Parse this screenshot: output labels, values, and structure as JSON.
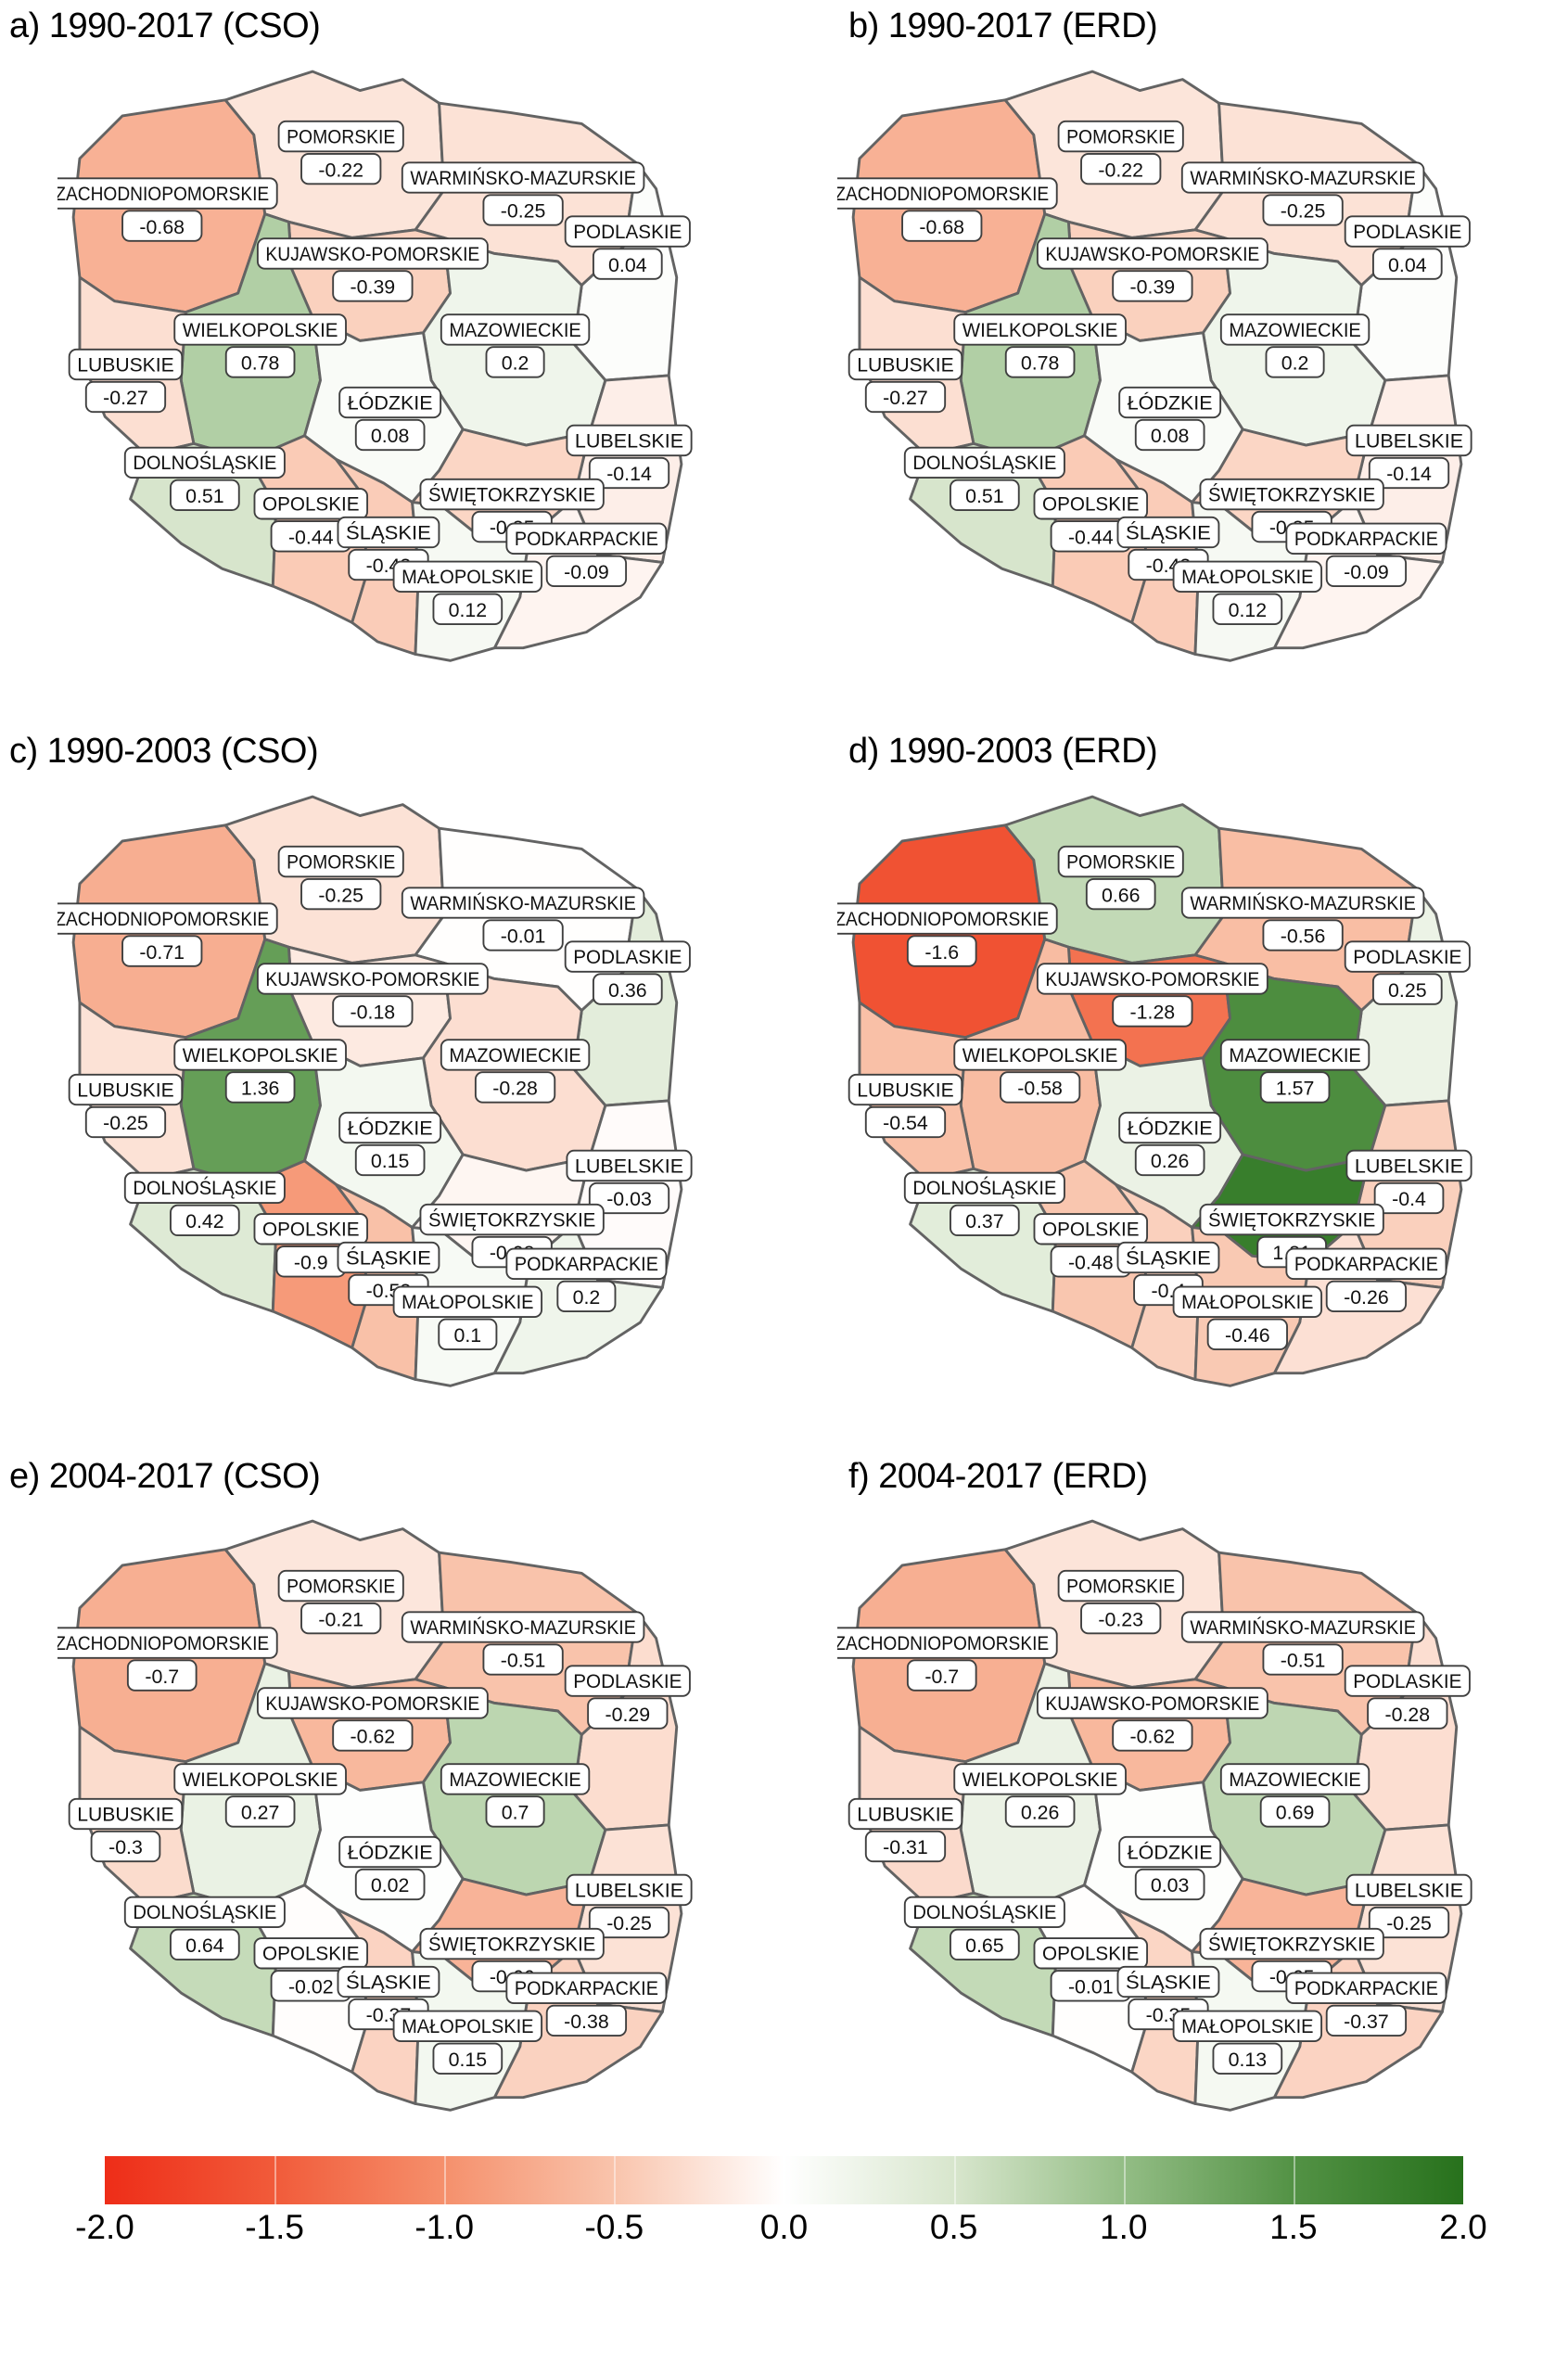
{
  "chart_data": {
    "type": "choropleth",
    "panels": [
      {
        "id": "a",
        "title": "a) 1990-2017 (CSO)",
        "values": {
          "ZACHODNIOPOMORSKIE": -0.68,
          "POMORSKIE": -0.22,
          "WARMIŃSKO-MAZURSKIE": -0.25,
          "PODLASKIE": 0.04,
          "KUJAWSKO-POMORSKIE": -0.39,
          "WIELKOPOLSKIE": 0.78,
          "MAZOWIECKIE": 0.2,
          "LUBUSKIE": -0.27,
          "ŁÓDZKIE": 0.08,
          "LUBELSKIE": -0.14,
          "DOLNOŚLĄSKIE": 0.51,
          "OPOLSKIE": -0.44,
          "ŚWIĘTOKRZYSKIE": -0.35,
          "ŚLĄSKIE": -0.43,
          "PODKARPACKIE": -0.09,
          "MAŁOPOLSKIE": 0.12
        }
      },
      {
        "id": "b",
        "title": "b) 1990-2017 (ERD)",
        "values": {
          "ZACHODNIOPOMORSKIE": -0.68,
          "POMORSKIE": -0.22,
          "WARMIŃSKO-MAZURSKIE": -0.25,
          "PODLASKIE": 0.04,
          "KUJAWSKO-POMORSKIE": -0.39,
          "WIELKOPOLSKIE": 0.78,
          "MAZOWIECKIE": 0.2,
          "LUBUSKIE": -0.27,
          "ŁÓDZKIE": 0.08,
          "LUBELSKIE": -0.14,
          "DOLNOŚLĄSKIE": 0.51,
          "OPOLSKIE": -0.44,
          "ŚWIĘTOKRZYSKIE": -0.35,
          "ŚLĄSKIE": -0.43,
          "PODKARPACKIE": -0.09,
          "MAŁOPOLSKIE": 0.12
        }
      },
      {
        "id": "c",
        "title": "c) 1990-2003 (CSO)",
        "values": {
          "ZACHODNIOPOMORSKIE": -0.71,
          "POMORSKIE": -0.25,
          "WARMIŃSKO-MAZURSKIE": -0.01,
          "PODLASKIE": 0.36,
          "KUJAWSKO-POMORSKIE": -0.18,
          "WIELKOPOLSKIE": 1.36,
          "MAZOWIECKIE": -0.28,
          "LUBUSKIE": -0.25,
          "ŁÓDZKIE": 0.15,
          "LUBELSKIE": -0.03,
          "DOLNOŚLĄSKIE": 0.42,
          "OPOLSKIE": -0.9,
          "ŚWIĘTOKRZYSKIE": -0.08,
          "ŚLĄSKIE": -0.53,
          "PODKARPACKIE": 0.2,
          "MAŁOPOLSKIE": 0.1
        }
      },
      {
        "id": "d",
        "title": "d) 1990-2003 (ERD)",
        "values": {
          "ZACHODNIOPOMORSKIE": -1.6,
          "POMORSKIE": 0.66,
          "WARMIŃSKO-MAZURSKIE": -0.56,
          "PODLASKIE": 0.25,
          "KUJAWSKO-POMORSKIE": -1.28,
          "WIELKOPOLSKIE": -0.58,
          "MAZOWIECKIE": 1.57,
          "LUBUSKIE": -0.54,
          "ŁÓDZKIE": 0.26,
          "LUBELSKIE": -0.4,
          "DOLNOŚLĄSKIE": 0.37,
          "OPOLSKIE": -0.48,
          "ŚWIĘTOKRZYSKIE": 1.81,
          "ŚLĄSKIE": -0.4,
          "PODKARPACKIE": -0.26,
          "MAŁOPOLSKIE": -0.46
        }
      },
      {
        "id": "e",
        "title": "e) 2004-2017 (CSO)",
        "values": {
          "ZACHODNIOPOMORSKIE": -0.7,
          "POMORSKIE": -0.21,
          "WARMIŃSKO-MAZURSKIE": -0.51,
          "PODLASKIE": -0.29,
          "KUJAWSKO-POMORSKIE": -0.62,
          "WIELKOPOLSKIE": 0.27,
          "MAZOWIECKIE": 0.7,
          "LUBUSKIE": -0.3,
          "ŁÓDZKIE": 0.02,
          "LUBELSKIE": -0.25,
          "DOLNOŚLĄSKIE": 0.64,
          "OPOLSKIE": -0.02,
          "ŚWIĘTOKRZYSKIE": -0.66,
          "ŚLĄSKIE": -0.37,
          "PODKARPACKIE": -0.38,
          "MAŁOPOLSKIE": 0.15
        }
      },
      {
        "id": "f",
        "title": "f) 2004-2017 (ERD)",
        "values": {
          "ZACHODNIOPOMORSKIE": -0.7,
          "POMORSKIE": -0.23,
          "WARMIŃSKO-MAZURSKIE": -0.51,
          "PODLASKIE": -0.28,
          "KUJAWSKO-POMORSKIE": -0.62,
          "WIELKOPOLSKIE": 0.26,
          "MAZOWIECKIE": 0.69,
          "LUBUSKIE": -0.31,
          "ŁÓDZKIE": 0.03,
          "LUBELSKIE": -0.25,
          "DOLNOŚLĄSKIE": 0.65,
          "OPOLSKIE": -0.01,
          "ŚWIĘTOKRZYSKIE": -0.65,
          "ŚLĄSKIE": -0.35,
          "PODKARPACKIE": -0.37,
          "MAŁOPOLSKIE": 0.13
        }
      }
    ],
    "regions": [
      "ZACHODNIOPOMORSKIE",
      "POMORSKIE",
      "WARMIŃSKO-MAZURSKIE",
      "PODLASKIE",
      "KUJAWSKO-POMORSKIE",
      "WIELKOPOLSKIE",
      "MAZOWIECKIE",
      "LUBUSKIE",
      "ŁÓDZKIE",
      "LUBELSKIE",
      "DOLNOŚLĄSKIE",
      "OPOLSKIE",
      "ŚWIĘTOKRZYSKIE",
      "ŚLĄSKIE",
      "PODKARPACKIE",
      "MAŁOPOLSKIE"
    ],
    "colorbar": {
      "min": -2.0,
      "max": 2.0,
      "tick_labels": [
        "-2.0",
        "-1.5",
        "-1.0",
        "-0.5",
        "0.0",
        "0.5",
        "1.0",
        "1.5",
        "2.0"
      ],
      "stop_values": [
        -2.0,
        -1.5,
        -1.0,
        -0.5,
        0.0,
        0.5,
        1.0,
        1.5,
        2.0
      ],
      "stop_colors": [
        "#ee2d18",
        "#f15b3a",
        "#f5906c",
        "#f9c4ac",
        "#ffffff",
        "#d8e6cd",
        "#93bd85",
        "#539245",
        "#27711c"
      ]
    },
    "style": {
      "region_border_color": "#636363",
      "label_box_fill": "#ffffff",
      "label_box_border": "#3f3f3f"
    }
  }
}
